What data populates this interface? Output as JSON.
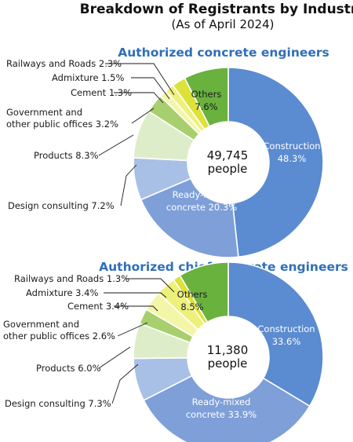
{
  "title": "Breakdown of Registrants by Industry",
  "subtitle": "(As of April 2024)",
  "colors": {
    "Construction": "#5b8bd0",
    "Ready-mixed concrete": "#7e9fd8",
    "Design consulting": "#a9c0e6",
    "Products": "#deedc9",
    "Government and other public offices": "#a7cf6e",
    "Cement": "#f3f6a8",
    "Admixture": "#eef07c",
    "Railways and Roads": "#dde23a",
    "Others": "#69b23e"
  },
  "chart_data": [
    {
      "type": "pie",
      "title": "Authorized concrete engineers",
      "center_label": [
        "49,745",
        "people"
      ],
      "slices": [
        {
          "name": "Construction",
          "value": 48.3,
          "label_lines": [
            "Construction",
            "48.3%"
          ],
          "label_pos": "inside"
        },
        {
          "name": "Ready-mixed concrete",
          "value": 20.3,
          "label_lines": [
            "Ready-mixed",
            "concrete 20.3%"
          ],
          "label_pos": "inside"
        },
        {
          "name": "Design consulting",
          "value": 7.2,
          "label_lines": [
            "Design consulting 7.2%"
          ],
          "label_pos": "outside"
        },
        {
          "name": "Products",
          "value": 8.3,
          "label_lines": [
            "Products 8.3%"
          ],
          "label_pos": "outside"
        },
        {
          "name": "Government and other public offices",
          "value": 3.2,
          "label_lines": [
            "Government and",
            "other public offices 3.2%"
          ],
          "label_pos": "outside"
        },
        {
          "name": "Cement",
          "value": 1.3,
          "label_lines": [
            "Cement 1.3%"
          ],
          "label_pos": "outside"
        },
        {
          "name": "Admixture",
          "value": 1.5,
          "label_lines": [
            "Admixture 1.5%"
          ],
          "label_pos": "outside"
        },
        {
          "name": "Railways and Roads",
          "value": 2.3,
          "label_lines": [
            "Railways and Roads 2.3%"
          ],
          "label_pos": "outside"
        },
        {
          "name": "Others",
          "value": 7.6,
          "label_lines": [
            "Others",
            "7.6%"
          ],
          "label_pos": "inside"
        }
      ]
    },
    {
      "type": "pie",
      "title": "Authorized chief concrete engineers",
      "center_label": [
        "11,380",
        "people"
      ],
      "slices": [
        {
          "name": "Construction",
          "value": 33.6,
          "label_lines": [
            "Construction",
            "33.6%"
          ],
          "label_pos": "inside"
        },
        {
          "name": "Ready-mixed concrete",
          "value": 33.9,
          "label_lines": [
            "Ready-mixed",
            "concrete 33.9%"
          ],
          "label_pos": "inside"
        },
        {
          "name": "Design consulting",
          "value": 7.3,
          "label_lines": [
            "Design consulting 7.3%"
          ],
          "label_pos": "outside"
        },
        {
          "name": "Products",
          "value": 6.0,
          "label_lines": [
            "Products 6.0%"
          ],
          "label_pos": "outside"
        },
        {
          "name": "Government and other public offices",
          "value": 2.6,
          "label_lines": [
            "Government and",
            "other public offices 2.6%"
          ],
          "label_pos": "outside"
        },
        {
          "name": "Cement",
          "value": 3.4,
          "label_lines": [
            "Cement 3.4%"
          ],
          "label_pos": "outside"
        },
        {
          "name": "Admixture",
          "value": 3.4,
          "label_lines": [
            "Admixture 3.4%"
          ],
          "label_pos": "outside"
        },
        {
          "name": "Railways and Roads",
          "value": 1.3,
          "label_lines": [
            "Railways and Roads 1.3%"
          ],
          "label_pos": "outside"
        },
        {
          "name": "Others",
          "value": 8.5,
          "label_lines": [
            "Others",
            "8.5%"
          ],
          "label_pos": "inside"
        }
      ]
    }
  ]
}
